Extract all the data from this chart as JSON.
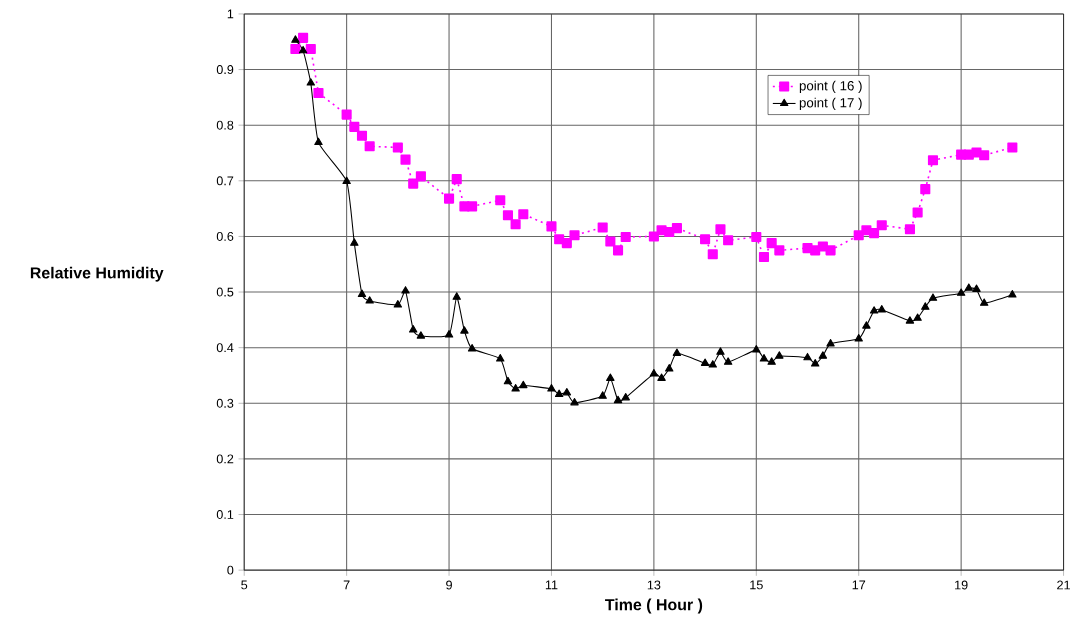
{
  "chart_data": {
    "type": "line",
    "xlabel": "Time ( Hour )",
    "ylabel": "Relative Humidity",
    "x": [
      6.0,
      6.15,
      6.3,
      6.45,
      7.0,
      7.15,
      7.3,
      7.45,
      8.0,
      8.15,
      8.3,
      8.45,
      9.0,
      9.15,
      9.3,
      9.45,
      10.0,
      10.15,
      10.3,
      10.45,
      11.0,
      11.15,
      11.3,
      11.45,
      12.0,
      12.15,
      12.3,
      12.45,
      13.0,
      13.15,
      13.3,
      13.45,
      14.0,
      14.15,
      14.3,
      14.45,
      15.0,
      15.15,
      15.3,
      15.45,
      16.0,
      16.15,
      16.3,
      16.45,
      17.0,
      17.15,
      17.3,
      17.45,
      18.0,
      18.15,
      18.3,
      18.45,
      19.0,
      19.15,
      19.3,
      19.45,
      20.0
    ],
    "series": [
      {
        "name": "point ( 16 )",
        "color": "#ff00ff",
        "marker": "square",
        "line_style": "dotted",
        "values": [
          0.937,
          0.957,
          0.937,
          0.858,
          0.819,
          0.797,
          0.781,
          0.762,
          0.76,
          0.738,
          0.695,
          0.708,
          0.668,
          0.703,
          0.654,
          0.654,
          0.665,
          0.638,
          0.622,
          0.64,
          0.618,
          0.595,
          0.588,
          0.602,
          0.616,
          0.591,
          0.575,
          0.599,
          0.6,
          0.611,
          0.608,
          0.615,
          0.595,
          0.568,
          0.613,
          0.593,
          0.599,
          0.563,
          0.588,
          0.575,
          0.579,
          0.575,
          0.582,
          0.575,
          0.602,
          0.611,
          0.606,
          0.62,
          0.613,
          0.643,
          0.685,
          0.737,
          0.747,
          0.747,
          0.751,
          0.746,
          0.76
        ]
      },
      {
        "name": "point ( 17 )",
        "color": "#000000",
        "marker": "triangle",
        "line_style": "solid",
        "values": [
          0.953,
          0.934,
          0.876,
          0.769,
          0.699,
          0.588,
          0.496,
          0.484,
          0.477,
          0.502,
          0.432,
          0.421,
          0.423,
          0.491,
          0.43,
          0.398,
          0.38,
          0.339,
          0.326,
          0.332,
          0.326,
          0.316,
          0.319,
          0.301,
          0.313,
          0.345,
          0.305,
          0.31,
          0.353,
          0.345,
          0.362,
          0.39,
          0.372,
          0.369,
          0.392,
          0.374,
          0.396,
          0.38,
          0.374,
          0.385,
          0.382,
          0.371,
          0.385,
          0.407,
          0.416,
          0.439,
          0.466,
          0.468,
          0.448,
          0.453,
          0.473,
          0.489,
          0.498,
          0.507,
          0.505,
          0.48,
          0.495
        ]
      }
    ],
    "xlim": [
      5,
      21
    ],
    "xticks": [
      5,
      7,
      9,
      11,
      13,
      15,
      17,
      19,
      21
    ],
    "ylim": [
      0,
      1
    ],
    "yticks": [
      0,
      {
        "value": 0.1,
        "label": "0.1"
      },
      {
        "value": 0.2,
        "label": "0.2"
      },
      {
        "value": 0.3,
        "label": "0.3"
      },
      {
        "value": 0.4,
        "label": "0.4"
      },
      {
        "value": 0.5,
        "label": "0.5"
      },
      {
        "value": 0.6,
        "label": "0.6"
      },
      {
        "value": 0.7,
        "label": "0.7"
      },
      {
        "value": 0.8,
        "label": "0.8"
      },
      {
        "value": 0.9,
        "label": "0.9"
      },
      1
    ],
    "grid": true,
    "legend": "top right"
  }
}
